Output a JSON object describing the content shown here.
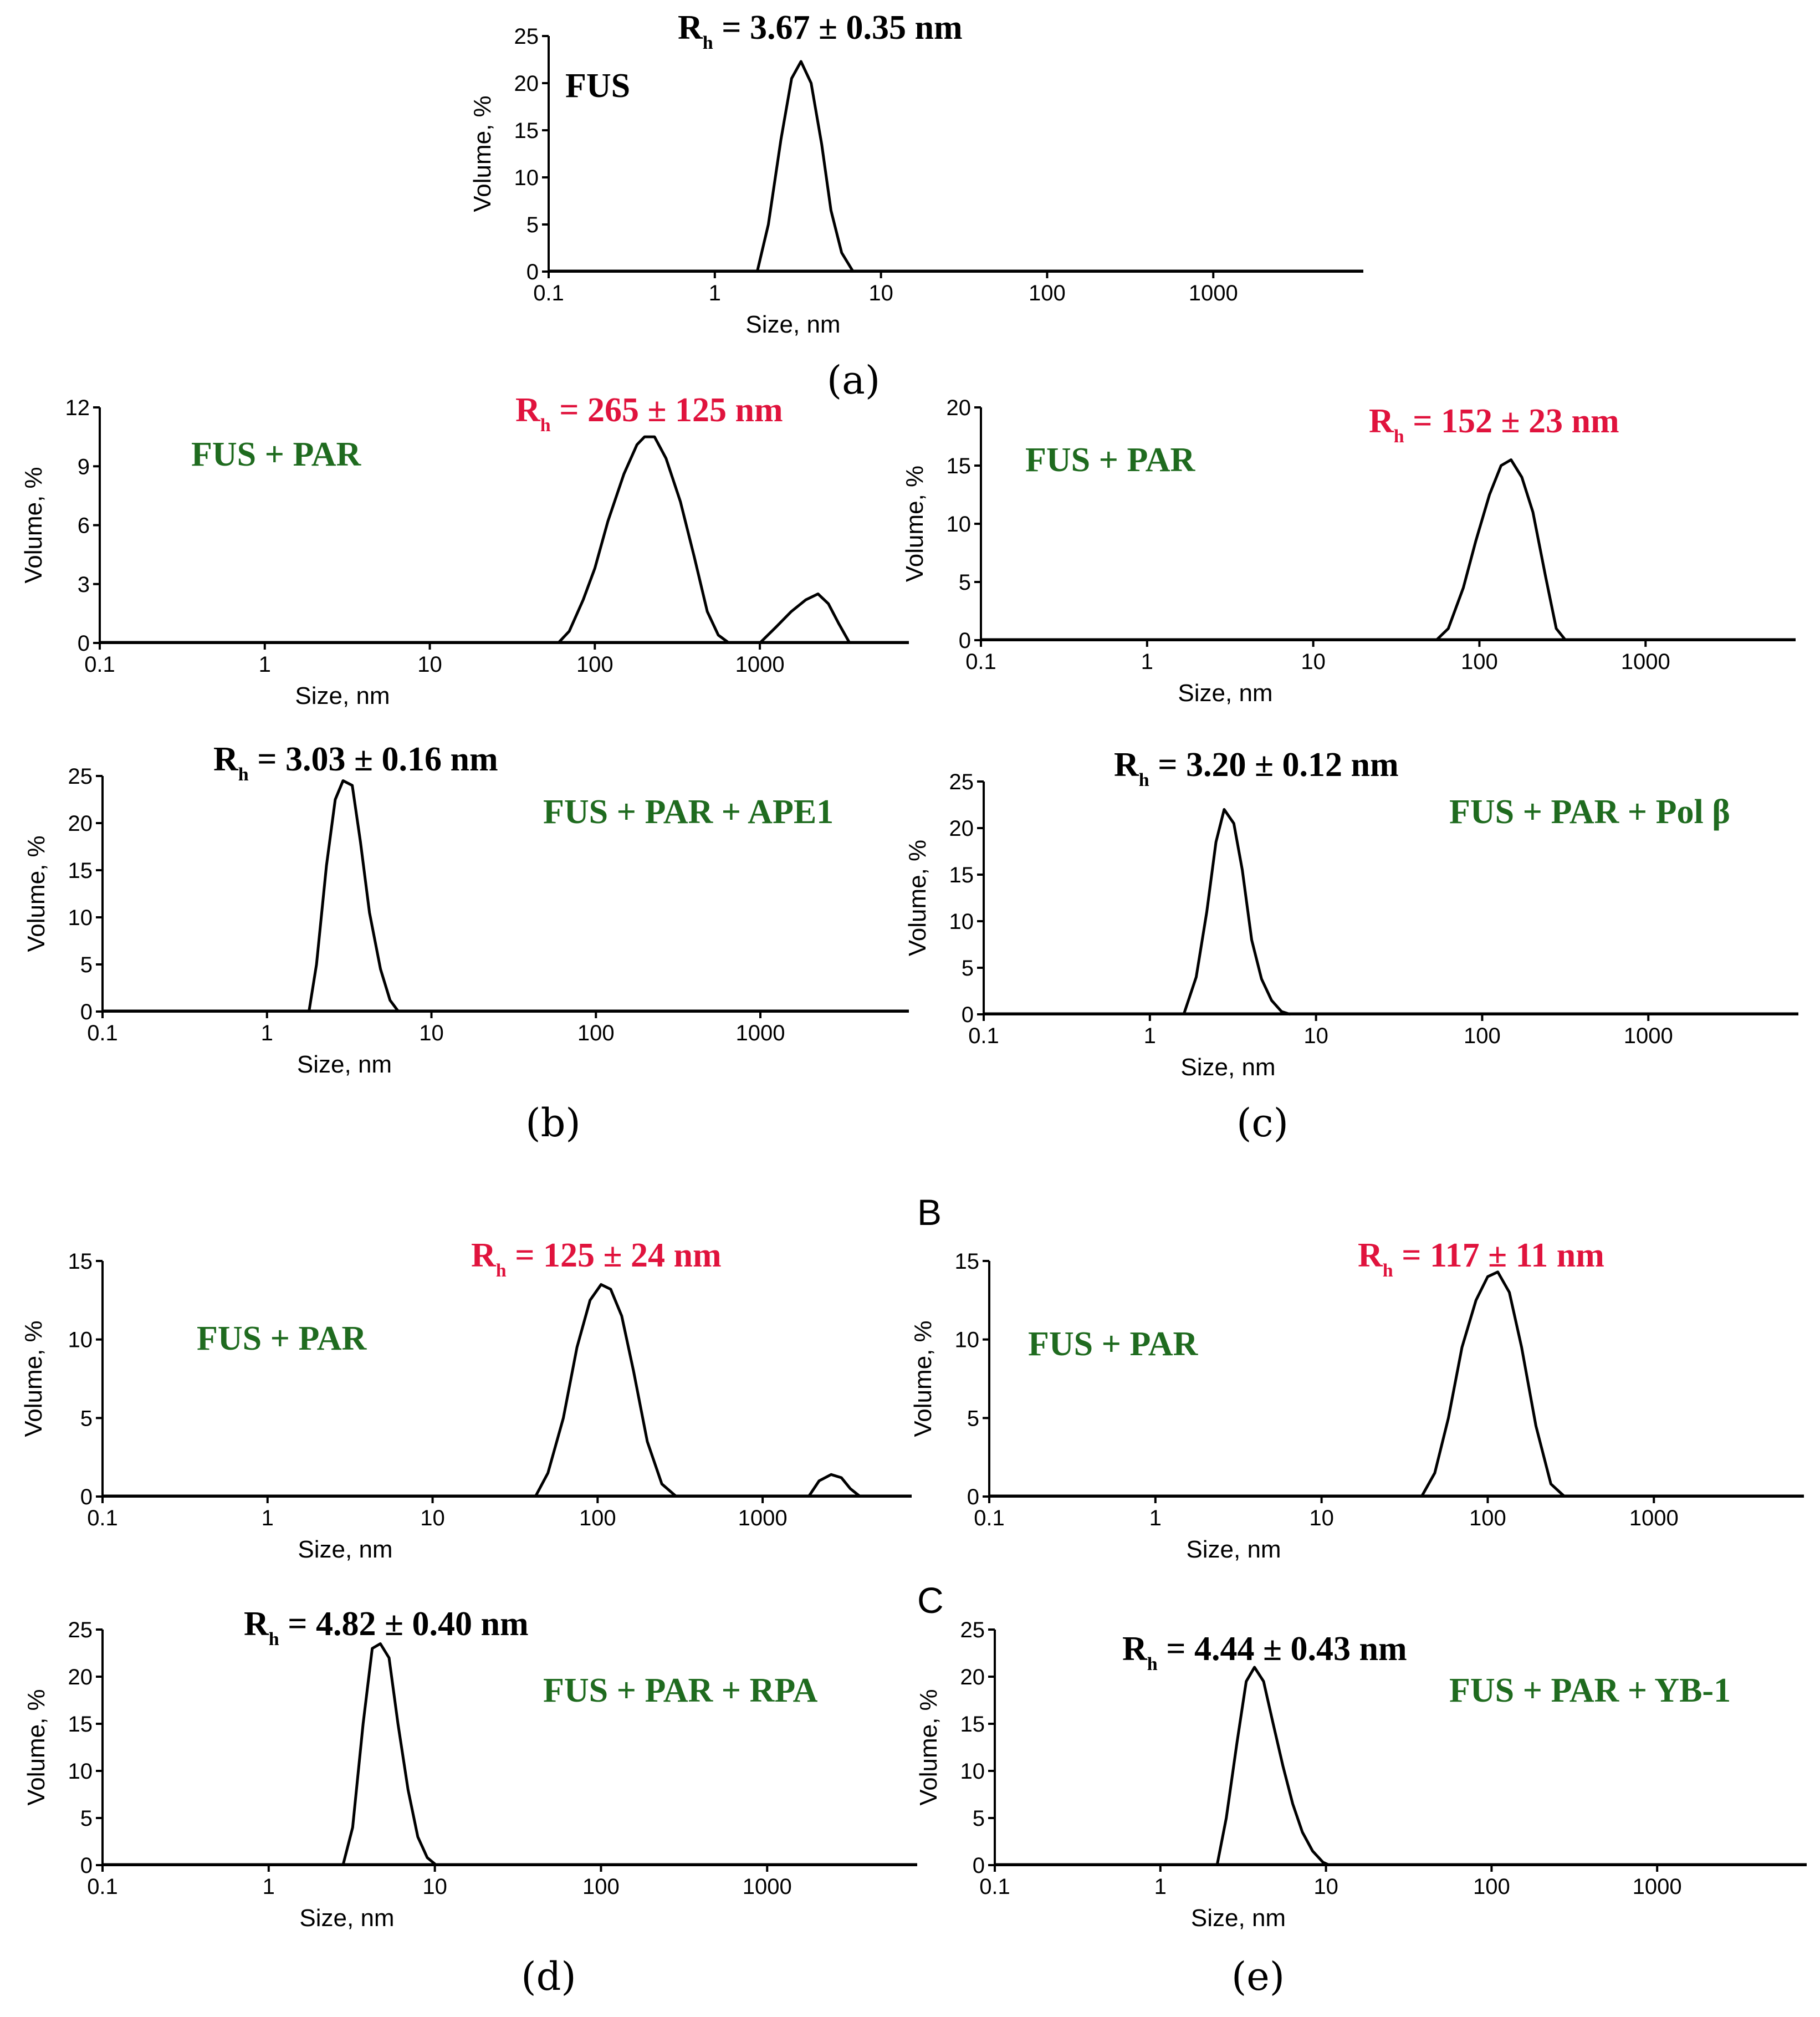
{
  "colors": {
    "text_black": "#000000",
    "label_green": "#1f6b1f",
    "rh_red": "#e0133d"
  },
  "panel_labels": [
    "(a)",
    "(b)",
    "(c)",
    "(d)",
    "(e)"
  ],
  "section_letters": [
    "B",
    "C"
  ],
  "chart_data": [
    {
      "id": "a-top",
      "type": "line",
      "ylabel": "Volume, %",
      "xlabel": "Size, nm",
      "xscale": "log",
      "xlim": [
        0.1,
        8000
      ],
      "ylim": [
        0,
        25
      ],
      "yticks": [
        0,
        5,
        10,
        15,
        20,
        25
      ],
      "xticks": [
        0.1,
        1,
        10,
        100,
        1000
      ],
      "xtick_labels": [
        "0.1",
        "1",
        "10",
        "100",
        "1000"
      ],
      "ytick_labels": [
        "0",
        "5",
        "10",
        "15",
        "20",
        "25"
      ],
      "sample": "FUS",
      "sample_color": "black",
      "rh_main": "R",
      "rh_sub": "h",
      "rh_value": " = 3.67 ± 0.35 nm",
      "rh_color": "black",
      "series": [
        {
          "name": "FUS",
          "x": [
            1.8,
            2.1,
            2.5,
            2.9,
            3.3,
            3.8,
            4.4,
            5.0,
            5.8,
            6.8
          ],
          "y": [
            0,
            5,
            14,
            20.5,
            22.3,
            20,
            13.5,
            6.5,
            2,
            0
          ]
        }
      ]
    },
    {
      "id": "b-top",
      "type": "line",
      "ylabel": "Volume, %",
      "xlabel": "Size, nm",
      "xscale": "log",
      "xlim": [
        0.1,
        8000
      ],
      "ylim": [
        0,
        12
      ],
      "yticks": [
        0,
        3,
        6,
        9,
        12
      ],
      "xticks": [
        0.1,
        1,
        10,
        100,
        1000
      ],
      "xtick_labels": [
        "0.1",
        "1",
        "10",
        "100",
        "1000"
      ],
      "ytick_labels": [
        "0",
        "3",
        "6",
        "9",
        "12"
      ],
      "sample": "FUS + PAR",
      "sample_color": "green",
      "rh_main": "R",
      "rh_sub": "h",
      "rh_value": " = 265 ± 125 nm",
      "rh_color": "red",
      "series": [
        {
          "name": "FUS + PAR",
          "x": [
            60,
            70,
            85,
            100,
            120,
            150,
            180,
            200,
            230,
            270,
            330,
            400,
            480,
            560,
            650
          ],
          "y": [
            0,
            0.6,
            2.2,
            3.8,
            6.2,
            8.6,
            10.1,
            10.5,
            10.5,
            9.4,
            7.2,
            4.4,
            1.6,
            0.4,
            0
          ]
        },
        {
          "name": "FUS + PAR minor",
          "x": [
            1000,
            1250,
            1550,
            1900,
            2250,
            2600,
            3000,
            3500
          ],
          "y": [
            0,
            0.8,
            1.6,
            2.2,
            2.5,
            2.0,
            1.0,
            0
          ]
        }
      ]
    },
    {
      "id": "b-bottom",
      "type": "line",
      "ylabel": "Volume, %",
      "xlabel": "Size, nm",
      "xscale": "log",
      "xlim": [
        0.1,
        8000
      ],
      "ylim": [
        0,
        25
      ],
      "yticks": [
        0,
        5,
        10,
        15,
        20,
        25
      ],
      "xticks": [
        0.1,
        1,
        10,
        100,
        1000
      ],
      "xtick_labels": [
        "0.1",
        "1",
        "10",
        "100",
        "1000"
      ],
      "ytick_labels": [
        "0",
        "5",
        "10",
        "15",
        "20",
        "25"
      ],
      "sample": "FUS + PAR + APE1",
      "sample_color": "green",
      "rh_main": "R",
      "rh_sub": "h",
      "rh_value": " = 3.03 ± 0.16 nm",
      "rh_color": "black",
      "series": [
        {
          "name": "FUS + PAR + APE1",
          "x": [
            1.8,
            2.0,
            2.3,
            2.6,
            2.9,
            3.3,
            3.7,
            4.2,
            4.9,
            5.6,
            6.3
          ],
          "y": [
            0,
            5,
            15.5,
            22.5,
            24.5,
            24,
            18,
            10.5,
            4.5,
            1.2,
            0
          ]
        }
      ]
    },
    {
      "id": "c-top",
      "type": "line",
      "ylabel": "Volume, %",
      "xlabel": "Size, nm",
      "xscale": "log",
      "xlim": [
        0.1,
        8000
      ],
      "ylim": [
        0,
        20
      ],
      "yticks": [
        0,
        5,
        10,
        15,
        20
      ],
      "xticks": [
        0.1,
        1,
        10,
        100,
        1000
      ],
      "xtick_labels": [
        "0.1",
        "1",
        "10",
        "100",
        "1000"
      ],
      "ytick_labels": [
        "0",
        "5",
        "10",
        "15",
        "20"
      ],
      "sample": "FUS + PAR",
      "sample_color": "green",
      "rh_main": "R",
      "rh_sub": "h",
      "rh_value": " = 152 ± 23 nm",
      "rh_color": "red",
      "series": [
        {
          "name": "FUS + PAR",
          "x": [
            55,
            65,
            80,
            95,
            115,
            135,
            155,
            180,
            210,
            250,
            290,
            330
          ],
          "y": [
            0,
            1,
            4.5,
            8.5,
            12.5,
            15,
            15.5,
            14,
            11,
            5.5,
            1,
            0
          ]
        }
      ]
    },
    {
      "id": "c-bottom",
      "type": "line",
      "ylabel": "Volume, %",
      "xlabel": "Size, nm",
      "xscale": "log",
      "xlim": [
        0.1,
        8000
      ],
      "ylim": [
        0,
        25
      ],
      "yticks": [
        0,
        5,
        10,
        15,
        20,
        25
      ],
      "xticks": [
        0.1,
        1,
        10,
        100,
        1000
      ],
      "xtick_labels": [
        "0.1",
        "1",
        "10",
        "100",
        "1000"
      ],
      "ytick_labels": [
        "0",
        "5",
        "10",
        "15",
        "20",
        "25"
      ],
      "sample": "FUS + PAR + Pol β",
      "sample_color": "green",
      "rh_main": "R",
      "rh_sub": "h",
      "rh_value": " = 3.20 ± 0.12 nm",
      "rh_color": "black",
      "series": [
        {
          "name": "FUS + PAR + Pol β",
          "x": [
            1.6,
            1.9,
            2.2,
            2.5,
            2.8,
            3.2,
            3.6,
            4.1,
            4.7,
            5.4,
            6.2,
            7.0
          ],
          "y": [
            0,
            4,
            11,
            18.5,
            22,
            20.5,
            15.5,
            8,
            3.8,
            1.5,
            0.3,
            0
          ]
        }
      ]
    },
    {
      "id": "d-top",
      "type": "line",
      "ylabel": "Volume, %",
      "xlabel": "Size, nm",
      "xscale": "log",
      "xlim": [
        0.1,
        8000
      ],
      "ylim": [
        0,
        15
      ],
      "yticks": [
        0,
        5,
        10,
        15
      ],
      "xticks": [
        0.1,
        1,
        10,
        100,
        1000
      ],
      "xtick_labels": [
        "0.1",
        "1",
        "10",
        "100",
        "1000"
      ],
      "ytick_labels": [
        "0",
        "5",
        "10",
        "15"
      ],
      "sample": "FUS + PAR",
      "sample_color": "green",
      "rh_main": "R",
      "rh_sub": "h",
      "rh_value": " = 125 ± 24 nm",
      "rh_color": "red",
      "series": [
        {
          "name": "FUS + PAR",
          "x": [
            42,
            50,
            62,
            75,
            90,
            105,
            120,
            140,
            165,
            200,
            245,
            300
          ],
          "y": [
            0,
            1.5,
            5,
            9.5,
            12.5,
            13.5,
            13.2,
            11.5,
            8,
            3.5,
            0.8,
            0
          ]
        },
        {
          "name": "FUS + PAR minor",
          "x": [
            1900,
            2200,
            2600,
            3000,
            3400,
            3900
          ],
          "y": [
            0,
            1.0,
            1.4,
            1.2,
            0.5,
            0
          ]
        }
      ]
    },
    {
      "id": "e-top",
      "type": "line",
      "ylabel": "Volume, %",
      "xlabel": "Size, nm",
      "xscale": "log",
      "xlim": [
        0.1,
        8000
      ],
      "ylim": [
        0,
        15
      ],
      "yticks": [
        0,
        5,
        10,
        15
      ],
      "xticks": [
        0.1,
        1,
        10,
        100,
        1000
      ],
      "xtick_labels": [
        "0.1",
        "1",
        "10",
        "100",
        "1000"
      ],
      "ytick_labels": [
        "0",
        "5",
        "10",
        "15"
      ],
      "sample": "FUS + PAR",
      "sample_color": "green",
      "rh_main": "R",
      "rh_sub": "h",
      "rh_value": " = 117 ± 11 nm",
      "rh_color": "red",
      "series": [
        {
          "name": "FUS + PAR",
          "x": [
            40,
            48,
            58,
            70,
            85,
            100,
            115,
            135,
            160,
            195,
            240,
            290
          ],
          "y": [
            0,
            1.5,
            5,
            9.5,
            12.5,
            14,
            14.3,
            13,
            9.5,
            4.5,
            0.8,
            0
          ]
        }
      ]
    },
    {
      "id": "d-bottom",
      "type": "line",
      "ylabel": "Volume, %",
      "xlabel": "Size, nm",
      "xscale": "log",
      "xlim": [
        0.1,
        8000
      ],
      "ylim": [
        0,
        25
      ],
      "yticks": [
        0,
        5,
        10,
        15,
        20,
        25
      ],
      "xticks": [
        0.1,
        1,
        10,
        100,
        1000
      ],
      "xtick_labels": [
        "0.1",
        "1",
        "10",
        "100",
        "1000"
      ],
      "ytick_labels": [
        "0",
        "5",
        "10",
        "15",
        "20",
        "25"
      ],
      "sample": "FUS + PAR + RPA",
      "sample_color": "green",
      "rh_main": "R",
      "rh_sub": "h",
      "rh_value": " = 4.82 ± 0.40 nm",
      "rh_color": "black",
      "series": [
        {
          "name": "FUS + PAR + RPA",
          "x": [
            2.8,
            3.2,
            3.7,
            4.2,
            4.7,
            5.3,
            6.0,
            6.9,
            7.9,
            9.0,
            10.2
          ],
          "y": [
            0,
            4,
            15,
            23,
            23.5,
            22,
            15,
            8,
            3,
            0.8,
            0
          ]
        }
      ]
    },
    {
      "id": "e-bottom",
      "type": "line",
      "ylabel": "Volume, %",
      "xlabel": "Size, nm",
      "xscale": "log",
      "xlim": [
        0.1,
        8000
      ],
      "ylim": [
        0,
        25
      ],
      "yticks": [
        0,
        5,
        10,
        15,
        20,
        25
      ],
      "xticks": [
        0.1,
        1,
        10,
        100,
        1000
      ],
      "xtick_labels": [
        "0.1",
        "1",
        "10",
        "100",
        "1000"
      ],
      "ytick_labels": [
        "0",
        "5",
        "10",
        "15",
        "20",
        "25"
      ],
      "sample": "FUS + PAR + YB-1",
      "sample_color": "green",
      "rh_main": "R",
      "rh_sub": "h",
      "rh_value": " = 4.44 ± 0.43 nm",
      "rh_color": "black",
      "series": [
        {
          "name": "FUS + PAR + YB-1",
          "x": [
            2.2,
            2.5,
            2.9,
            3.3,
            3.7,
            4.2,
            4.8,
            5.5,
            6.3,
            7.2,
            8.3,
            9.6,
            10.5
          ],
          "y": [
            0,
            5,
            13,
            19.5,
            21,
            19.5,
            15,
            10.5,
            6.5,
            3.5,
            1.5,
            0.3,
            0
          ]
        }
      ]
    }
  ]
}
